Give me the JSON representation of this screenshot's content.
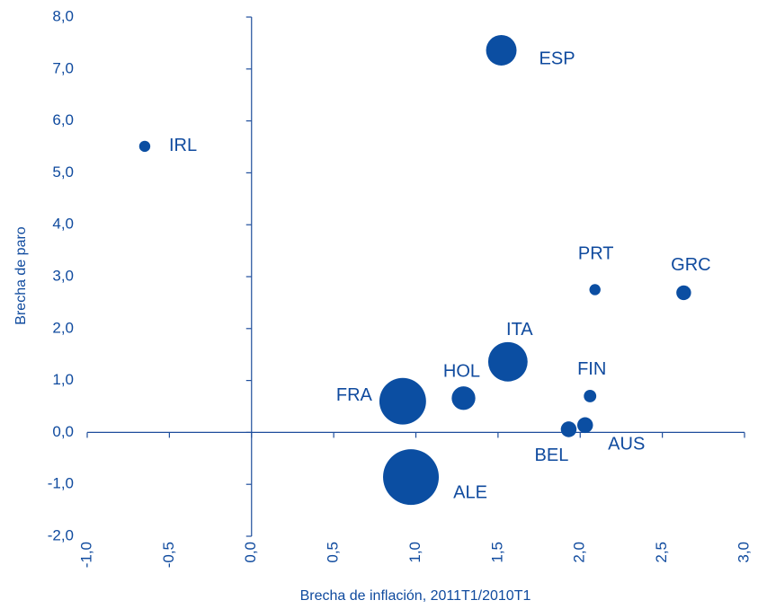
{
  "chart_data": {
    "type": "scatter",
    "xlabel": "Brecha de inflación, 2011T1/2010T1",
    "ylabel": "Brecha de paro",
    "categories": [
      "ESP",
      "IRL",
      "PRT",
      "GRC",
      "ITA",
      "HOL",
      "FIN",
      "FRA",
      "BEL",
      "AUS",
      "ALE"
    ],
    "x": [
      1.52,
      -0.65,
      2.09,
      2.63,
      1.56,
      1.29,
      2.06,
      0.92,
      1.93,
      2.03,
      0.97
    ],
    "values": [
      7.36,
      5.51,
      2.75,
      2.69,
      1.36,
      0.66,
      0.7,
      0.6,
      0.06,
      0.14,
      -0.86
    ],
    "sizes": [
      30,
      4,
      4,
      7,
      50,
      18,
      5,
      70,
      8,
      8,
      100
    ],
    "color": "#0b4ea2",
    "xlim": [
      -1.0,
      3.0
    ],
    "xticks": [
      {
        "value": -1.0,
        "label": "-1,0"
      },
      {
        "value": -0.5,
        "label": "-0,5"
      },
      {
        "value": 0.0,
        "label": "0,0"
      },
      {
        "value": 0.5,
        "label": "0,5"
      },
      {
        "value": 1.0,
        "label": "1,0"
      },
      {
        "value": 1.5,
        "label": "1,5"
      },
      {
        "value": 2.0,
        "label": "2,0"
      },
      {
        "value": 2.5,
        "label": "2,5"
      },
      {
        "value": 3.0,
        "label": "3,0"
      }
    ],
    "ylim": [
      -2.0,
      8.0
    ],
    "yticks": [
      {
        "value": -2.0,
        "label": "-2,0"
      },
      {
        "value": -1.0,
        "label": "-1,0"
      },
      {
        "value": 0.0,
        "label": "0,0"
      },
      {
        "value": 1.0,
        "label": "1,0"
      },
      {
        "value": 2.0,
        "label": "2,0"
      },
      {
        "value": 3.0,
        "label": "3,0"
      },
      {
        "value": 4.0,
        "label": "4,0"
      },
      {
        "value": 5.0,
        "label": "5,0"
      },
      {
        "value": 6.0,
        "label": "6,0"
      },
      {
        "value": 7.0,
        "label": "7,0"
      },
      {
        "value": 8.0,
        "label": "8,0"
      }
    ]
  }
}
